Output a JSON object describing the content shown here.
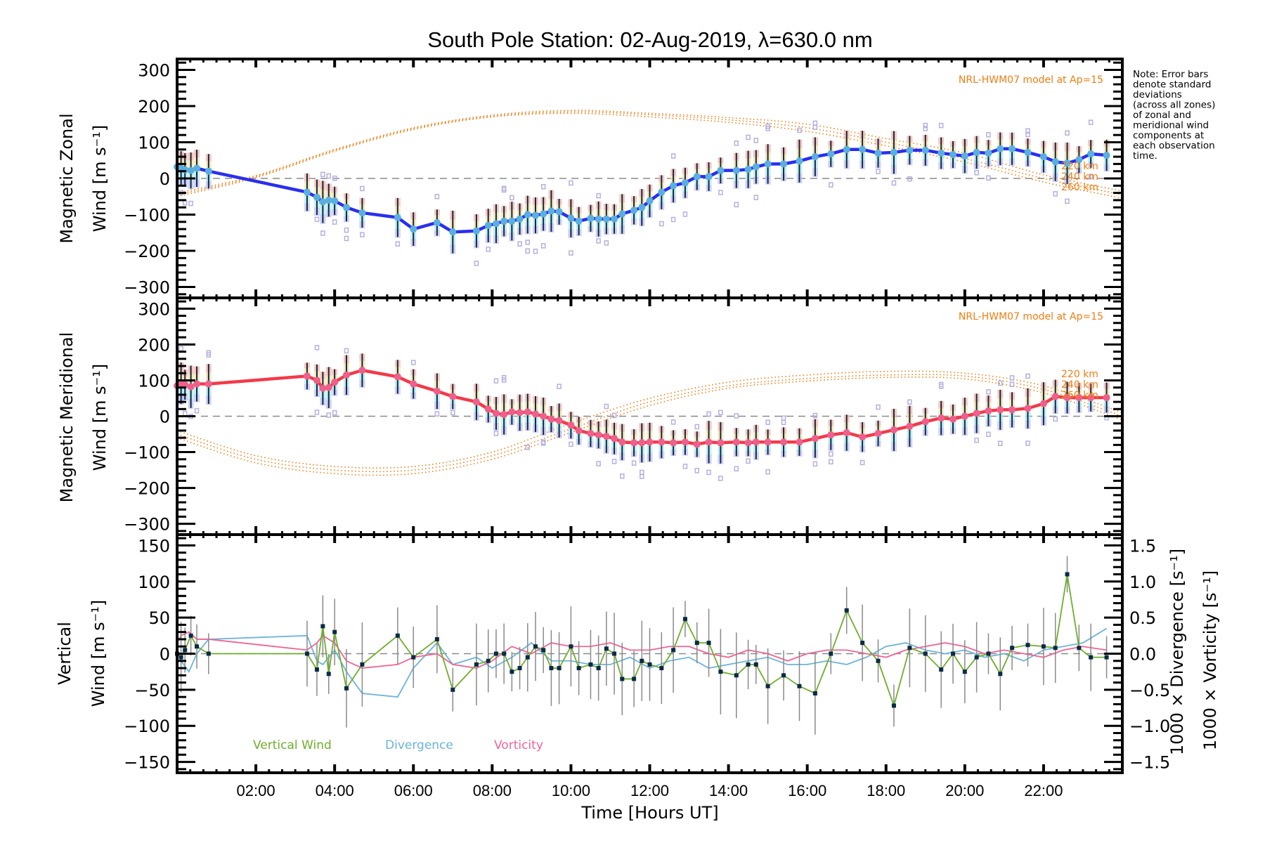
{
  "title": "South Pole Station: 02-Aug-2019, λ=630.0 nm",
  "note_lines": [
    "Note: Error bars",
    "denote standard",
    "deviations",
    "(across all zones)",
    "of zonal and",
    "meridional wind",
    "components at",
    "each observation",
    "time."
  ],
  "colors": {
    "zonal_line": "#2a2ef0",
    "meridional_line": "#f23a48",
    "point_zonal": "#5aaee0",
    "point_meridional": "#ef5f8d",
    "model": "#f07d12",
    "vertical": "#6fae2c",
    "divergence": "#6ab4dc",
    "vorticity": "#f06493",
    "errorbar": "#0b2a45",
    "zone_marker": "#b4b0e0",
    "zero_line": "#8a8a8a"
  },
  "chart_data": [
    {
      "type": "line",
      "panel": "zonal",
      "title": "South Pole Station: 02-Aug-2019, λ=630.0 nm",
      "ylabel_lines": [
        "Magnetic Zonal",
        "Wind [m s⁻¹]"
      ],
      "xlabel": "",
      "xlim": [
        0,
        24
      ],
      "ylim": [
        -330,
        330
      ],
      "yticks": [
        300,
        200,
        100,
        0,
        -100,
        -200,
        -300
      ],
      "ytick_labels": [
        "300",
        "200",
        "100",
        "0",
        "−100",
        "−200",
        "−300"
      ],
      "model_label": "NRL-HWM07 model at Ap=15",
      "model_heights": [
        "220 km",
        "240 km",
        "260 km"
      ],
      "series": [
        {
          "name": "Zonal wind",
          "x": [
            0.0,
            0.1,
            0.2,
            0.35,
            0.5,
            0.8,
            3.3,
            3.55,
            3.7,
            3.85,
            4.0,
            4.3,
            4.7,
            5.6,
            6.0,
            6.6,
            7.0,
            7.6,
            7.9,
            8.1,
            8.3,
            8.5,
            8.7,
            8.9,
            9.1,
            9.3,
            9.5,
            9.7,
            10.0,
            10.2,
            10.5,
            10.7,
            10.9,
            11.1,
            11.3,
            11.6,
            11.8,
            12.0,
            12.3,
            12.6,
            12.9,
            13.2,
            13.5,
            13.8,
            14.2,
            14.5,
            14.7,
            15.0,
            15.4,
            15.8,
            16.2,
            16.6,
            17.0,
            17.4,
            17.8,
            18.2,
            18.6,
            19.0,
            19.4,
            19.7,
            20.0,
            20.3,
            20.6,
            20.9,
            21.2,
            21.6,
            22.0,
            22.3,
            22.6,
            22.9,
            23.2,
            23.6
          ],
          "y": [
            32,
            28,
            24,
            22,
            28,
            20,
            -38,
            -52,
            -65,
            -60,
            -62,
            -80,
            -95,
            -108,
            -140,
            -122,
            -148,
            -145,
            -130,
            -125,
            -118,
            -118,
            -112,
            -100,
            -102,
            -98,
            -90,
            -92,
            -110,
            -118,
            -110,
            -112,
            -112,
            -112,
            -98,
            -88,
            -80,
            -62,
            -38,
            -20,
            -12,
            5,
            5,
            22,
            22,
            25,
            32,
            40,
            40,
            48,
            60,
            68,
            80,
            80,
            70,
            72,
            78,
            78,
            70,
            66,
            62,
            72,
            70,
            82,
            82,
            72,
            60,
            46,
            42,
            52,
            68,
            64
          ]
        },
        {
          "name": "NRL-HWM07 220 km",
          "x": [
            0,
            2,
            4,
            6,
            8,
            10,
            12,
            14,
            16,
            18,
            20,
            22,
            24
          ],
          "y": [
            -40,
            8,
            80,
            140,
            175,
            188,
            180,
            168,
            150,
            110,
            70,
            10,
            -35
          ]
        },
        {
          "name": "NRL-HWM07 240 km",
          "x": [
            0,
            2,
            4,
            6,
            8,
            10,
            12,
            14,
            16,
            18,
            20,
            22,
            24
          ],
          "y": [
            -45,
            5,
            78,
            138,
            172,
            184,
            176,
            162,
            140,
            100,
            55,
            0,
            -45
          ]
        },
        {
          "name": "NRL-HWM07 260 km",
          "x": [
            0,
            2,
            4,
            6,
            8,
            10,
            12,
            14,
            16,
            18,
            20,
            22,
            24
          ],
          "y": [
            -50,
            2,
            75,
            135,
            170,
            180,
            170,
            155,
            130,
            90,
            45,
            -10,
            -55
          ]
        }
      ]
    },
    {
      "type": "line",
      "panel": "meridional",
      "ylabel_lines": [
        "Magnetic Meridional",
        "Wind [m s⁻¹]"
      ],
      "xlim": [
        0,
        24
      ],
      "ylim": [
        -330,
        330
      ],
      "yticks": [
        300,
        200,
        100,
        0,
        -100,
        -200,
        -300
      ],
      "ytick_labels": [
        "300",
        "200",
        "100",
        "0",
        "−100",
        "−200",
        "−300"
      ],
      "model_label": "NRL-HWM07 model at Ap=15",
      "model_heights": [
        "220 km",
        "240 km",
        "260 km"
      ],
      "series": [
        {
          "name": "Meridional wind",
          "x": [
            0.0,
            0.1,
            0.2,
            0.35,
            0.5,
            0.8,
            3.3,
            3.55,
            3.7,
            3.85,
            4.0,
            4.3,
            4.7,
            5.6,
            6.0,
            6.6,
            7.0,
            7.6,
            7.9,
            8.1,
            8.3,
            8.5,
            8.7,
            8.9,
            9.1,
            9.3,
            9.5,
            9.7,
            10.0,
            10.2,
            10.5,
            10.7,
            10.9,
            11.1,
            11.3,
            11.6,
            11.8,
            12.0,
            12.3,
            12.6,
            12.9,
            13.2,
            13.5,
            13.8,
            14.2,
            14.5,
            14.7,
            15.0,
            15.4,
            15.8,
            16.2,
            16.6,
            17.0,
            17.4,
            17.8,
            18.2,
            18.6,
            19.0,
            19.4,
            19.7,
            20.0,
            20.3,
            20.6,
            20.9,
            21.2,
            21.6,
            22.0,
            22.3,
            22.6,
            22.9,
            23.2,
            23.6
          ],
          "y": [
            85,
            92,
            88,
            82,
            90,
            90,
            112,
            100,
            78,
            80,
            95,
            115,
            128,
            110,
            90,
            70,
            55,
            40,
            20,
            8,
            5,
            12,
            10,
            12,
            6,
            0,
            -8,
            -12,
            -25,
            -40,
            -48,
            -52,
            -56,
            -62,
            -72,
            -74,
            -74,
            -72,
            -72,
            -74,
            -72,
            -78,
            -72,
            -74,
            -72,
            -74,
            -72,
            -72,
            -72,
            -72,
            -62,
            -52,
            -46,
            -58,
            -48,
            -38,
            -28,
            -15,
            -5,
            -8,
            0,
            8,
            15,
            18,
            18,
            22,
            35,
            55,
            52,
            52,
            52,
            52
          ]
        },
        {
          "name": "NRL-HWM07 220 km",
          "x": [
            0,
            2,
            4,
            6,
            8,
            10,
            12,
            14,
            16,
            18,
            20,
            22,
            24
          ],
          "y": [
            -40,
            -110,
            -140,
            -140,
            -100,
            -20,
            50,
            95,
            115,
            125,
            120,
            85,
            10
          ]
        },
        {
          "name": "NRL-HWM07 240 km",
          "x": [
            0,
            2,
            4,
            6,
            8,
            10,
            12,
            14,
            16,
            18,
            20,
            22,
            24
          ],
          "y": [
            -50,
            -120,
            -150,
            -150,
            -110,
            -35,
            40,
            85,
            105,
            115,
            112,
            75,
            0
          ]
        },
        {
          "name": "NRL-HWM07 260 km",
          "x": [
            0,
            2,
            4,
            6,
            8,
            10,
            12,
            14,
            16,
            18,
            20,
            22,
            24
          ],
          "y": [
            -60,
            -130,
            -160,
            -160,
            -120,
            -45,
            30,
            78,
            98,
            108,
            104,
            65,
            -10
          ]
        }
      ]
    },
    {
      "type": "line",
      "panel": "vertical",
      "ylabel_lines": [
        "Vertical",
        "Wind [m s⁻¹]"
      ],
      "y2label_lines": [
        "1000 × Divergence [s⁻¹]",
        "1000 × Vorticity [s⁻¹]"
      ],
      "xlabel": "Time [Hours UT]",
      "xlim": [
        0,
        24
      ],
      "xticks": [
        2,
        4,
        6,
        8,
        10,
        12,
        14,
        16,
        18,
        20,
        22
      ],
      "xtick_labels": [
        "02:00",
        "04:00",
        "06:00",
        "08:00",
        "10:00",
        "12:00",
        "14:00",
        "16:00",
        "18:00",
        "20:00",
        "22:00"
      ],
      "ylim": [
        -165,
        165
      ],
      "yticks": [
        150,
        100,
        50,
        0,
        -50,
        -100,
        -150
      ],
      "ytick_labels": [
        "150",
        "100",
        "50",
        "0",
        "−50",
        "−100",
        "−150"
      ],
      "y2lim": [
        -1.65,
        1.65
      ],
      "y2ticks": [
        1.5,
        1.0,
        0.5,
        0.0,
        -0.5,
        -1.0,
        -1.5
      ],
      "y2tick_labels": [
        "1.5",
        "1.0",
        "0.5",
        "0.0",
        "−0.5",
        "−1.0",
        "−1.5"
      ],
      "legend": [
        "Vertical Wind",
        "Divergence",
        "Vorticity"
      ],
      "legend_location": "bottom-left",
      "series": [
        {
          "name": "Vertical Wind",
          "axis": "left",
          "x": [
            0.0,
            0.1,
            0.2,
            0.35,
            0.5,
            0.8,
            3.3,
            3.55,
            3.7,
            3.85,
            4.0,
            4.3,
            4.7,
            5.6,
            6.0,
            6.6,
            7.0,
            7.6,
            7.9,
            8.1,
            8.3,
            8.5,
            8.7,
            8.9,
            9.1,
            9.3,
            9.5,
            9.7,
            10.0,
            10.2,
            10.5,
            10.7,
            10.9,
            11.1,
            11.3,
            11.6,
            11.8,
            12.0,
            12.3,
            12.6,
            12.9,
            13.2,
            13.5,
            13.8,
            14.2,
            14.5,
            14.7,
            15.0,
            15.4,
            15.8,
            16.2,
            16.6,
            17.0,
            17.4,
            17.8,
            18.2,
            18.6,
            19.0,
            19.4,
            19.7,
            20.0,
            20.3,
            20.6,
            20.9,
            21.2,
            21.6,
            22.0,
            22.3,
            22.6,
            22.9,
            23.2,
            23.6
          ],
          "y": [
            0,
            -5,
            5,
            25,
            10,
            0,
            0,
            -22,
            38,
            -28,
            30,
            -48,
            -15,
            25,
            -5,
            20,
            -50,
            -15,
            -10,
            0,
            0,
            -25,
            -20,
            -5,
            10,
            5,
            -20,
            -20,
            10,
            -20,
            -15,
            -20,
            7,
            0,
            -35,
            -35,
            -10,
            -15,
            -20,
            5,
            48,
            15,
            15,
            -25,
            -30,
            -15,
            -15,
            -45,
            -30,
            -45,
            -55,
            0,
            60,
            15,
            -10,
            -72,
            8,
            0,
            -22,
            0,
            -25,
            -5,
            0,
            -28,
            8,
            12,
            10,
            8,
            110,
            8,
            -5,
            -5
          ]
        },
        {
          "name": "Divergence",
          "axis": "right",
          "x": [
            0,
            0.1,
            0.3,
            0.5,
            0.8,
            3.3,
            3.55,
            3.7,
            4.0,
            4.3,
            4.7,
            5.6,
            6.0,
            6.6,
            7.0,
            7.6,
            8.0,
            8.5,
            9.0,
            9.5,
            10.0,
            10.5,
            11.0,
            11.5,
            12.0,
            12.5,
            13.0,
            13.5,
            14.0,
            14.5,
            15.0,
            15.5,
            16.0,
            16.5,
            17.0,
            17.5,
            18.0,
            18.5,
            19.0,
            19.5,
            20.0,
            20.5,
            21.0,
            21.5,
            22.0,
            22.5,
            23.0,
            23.6
          ],
          "y": [
            0.05,
            -0.1,
            -0.25,
            0.0,
            0.2,
            0.25,
            -0.1,
            -0.15,
            0.05,
            -0.25,
            -0.55,
            -0.6,
            -0.2,
            0.15,
            -0.15,
            -0.05,
            -0.2,
            -0.05,
            0.15,
            -0.1,
            -0.1,
            -0.15,
            -0.15,
            -0.05,
            -0.2,
            -0.1,
            -0.05,
            -0.2,
            -0.15,
            -0.1,
            -0.05,
            -0.15,
            -0.15,
            -0.1,
            -0.15,
            -0.05,
            0.1,
            0.15,
            0.05,
            0.0,
            0.05,
            -0.05,
            0.0,
            -0.1,
            0.05,
            0.1,
            0.15,
            0.35
          ]
        },
        {
          "name": "Vorticity",
          "axis": "right",
          "x": [
            0,
            0.1,
            0.3,
            0.5,
            0.8,
            3.3,
            3.55,
            3.7,
            4.0,
            4.3,
            4.7,
            5.6,
            6.0,
            6.6,
            7.0,
            7.6,
            8.0,
            8.5,
            9.0,
            9.5,
            10.0,
            10.5,
            11.0,
            11.5,
            12.0,
            12.5,
            13.0,
            13.5,
            14.0,
            14.5,
            15.0,
            15.5,
            16.0,
            16.5,
            17.0,
            17.5,
            18.0,
            18.5,
            19.0,
            19.5,
            20.0,
            20.5,
            21.0,
            21.5,
            22.0,
            22.5,
            23.0,
            23.6
          ],
          "y": [
            0.15,
            0.25,
            0.3,
            0.2,
            0.2,
            0.05,
            0.15,
            0.25,
            0.15,
            -0.1,
            -0.2,
            -0.15,
            -0.05,
            0.0,
            -0.15,
            -0.2,
            -0.1,
            0.1,
            0.0,
            0.15,
            0.1,
            0.1,
            0.15,
            0.05,
            0.05,
            0.1,
            0.1,
            0.0,
            -0.05,
            0.05,
            0.0,
            -0.1,
            0.0,
            0.05,
            0.05,
            0.0,
            -0.05,
            0.05,
            0.1,
            0.15,
            0.1,
            0.0,
            0.05,
            0.0,
            -0.05,
            0.05,
            0.1,
            0.05
          ]
        }
      ]
    }
  ]
}
